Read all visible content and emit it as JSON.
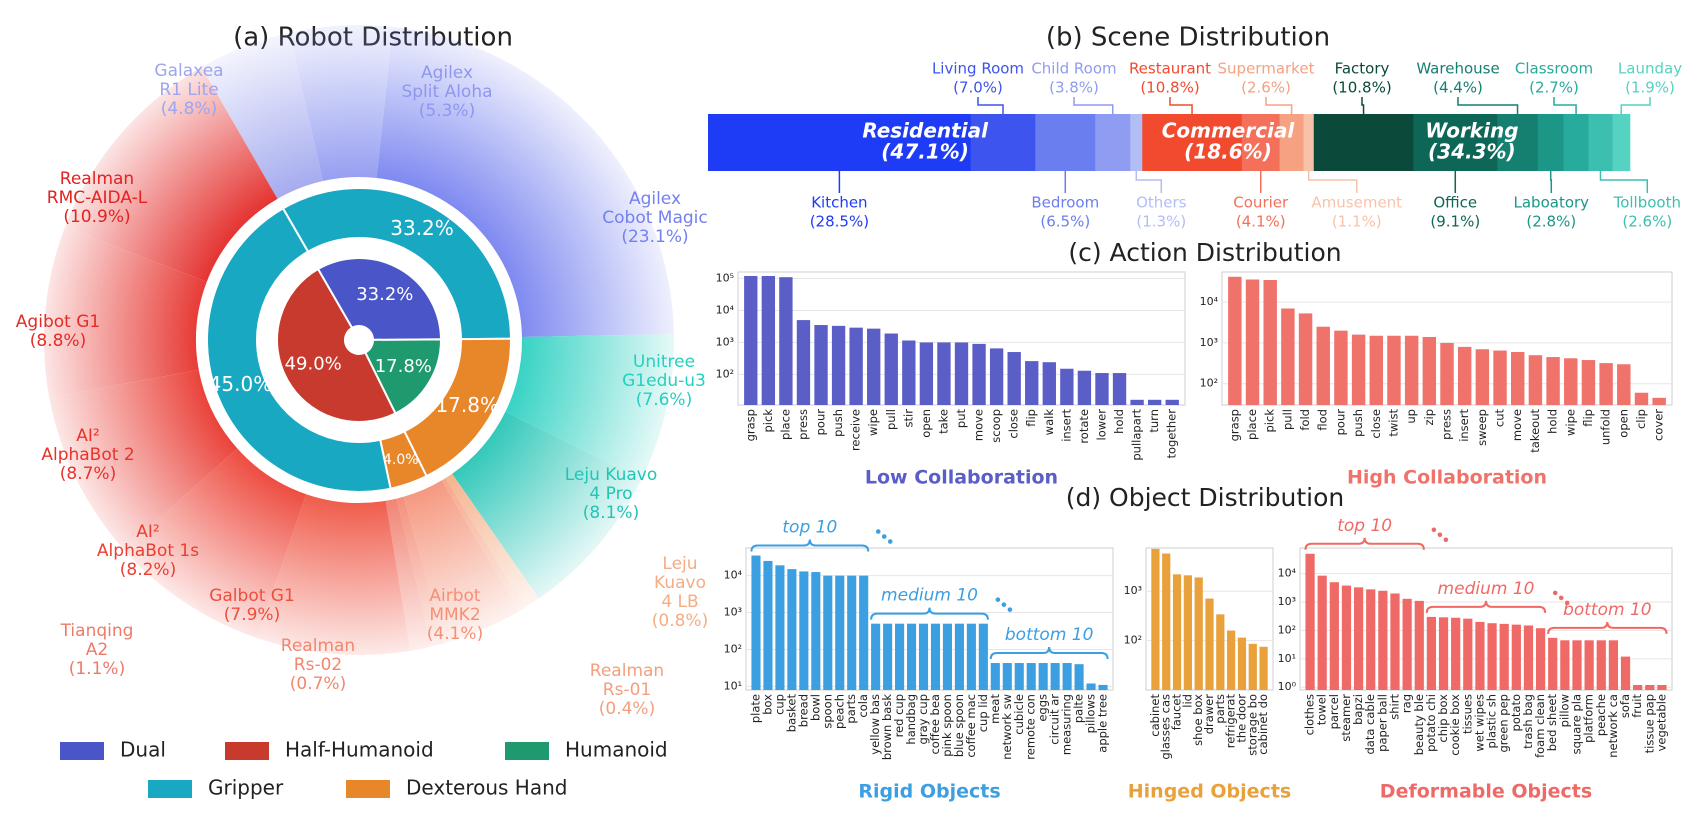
{
  "chart_data": [
    {
      "type": "donut",
      "title": "(a) Robot Distribution",
      "inner": {
        "categories": [
          "Dual",
          "Humanoid",
          "Half-Humanoid"
        ],
        "values": [
          33.2,
          17.8,
          49.0
        ],
        "value_labels": [
          "33.2%",
          "17.8%",
          "49.0%"
        ],
        "colors": [
          "#4a55c8",
          "#1f9a6e",
          "#c83a2e"
        ]
      },
      "middle": {
        "categories": [
          "Gripper",
          "Dexterous Hand",
          "Dexterous Hand",
          "Gripper"
        ],
        "values": [
          33.2,
          17.8,
          4.0,
          45.0
        ],
        "value_labels": [
          "33.2%",
          "17.8%",
          "4.0%",
          "45.0%"
        ],
        "colors": [
          "#18a8c2",
          "#e8862a",
          "#e8862a",
          "#18a8c2"
        ]
      },
      "outer": {
        "categories": [
          "Galaxea\nR1 Lite",
          "Agilex\nSplit Aloha",
          "Agilex\nCobot Magic",
          "Unitree\nG1edu-u3",
          "Leju Kuavo\n4 Pro",
          "Leju\nKuavo\n4 LB",
          "Realman\nRs-01",
          "Airbot\nMMK2",
          "Realman\nRs-02",
          "Tianqing\nA2",
          "Galbot G1",
          "AI²\nAlphaBot 1s",
          "AI²\nAlphaBot 2",
          "Agibot G1",
          "Realman\nRMC-AIDA-L"
        ],
        "values": [
          4.8,
          5.3,
          23.1,
          7.6,
          8.1,
          0.8,
          0.4,
          4.1,
          0.7,
          1.1,
          7.9,
          8.2,
          8.7,
          8.8,
          10.9
        ],
        "value_labels": [
          "(4.8%)",
          "(5.3%)",
          "(23.1%)",
          "(7.6%)",
          "(8.1%)",
          "(0.8%)",
          "(0.4%)",
          "(4.1%)",
          "(0.7%)",
          "(1.1%)",
          "(7.9%)",
          "(8.2%)",
          "(8.7%)",
          "(8.8%)",
          "(10.9%)"
        ],
        "colors": [
          "#9ea5ee",
          "#8e97f0",
          "#7480ef",
          "#27cfbf",
          "#22c4b4",
          "#f4ad84",
          "#f59e7e",
          "#f49076",
          "#f2866e",
          "#ef7a68",
          "#ee4f3d",
          "#ec3e31",
          "#e8332a",
          "#e52b25",
          "#e22320"
        ]
      }
    },
    {
      "type": "stacked_hbar",
      "title": "(b) Scene Distribution",
      "groups": [
        {
          "name": "Residential",
          "value": 47.1,
          "value_label": "(47.1%)",
          "categories": [
            "Kitchen",
            "Living Room",
            "Bedroom",
            "Child Room",
            "Others"
          ],
          "values": [
            28.5,
            7.0,
            6.5,
            3.8,
            1.3
          ],
          "value_labels": [
            "(28.5%)",
            "(7.0%)",
            "(6.5%)",
            "(3.8%)",
            "(1.3%)"
          ],
          "colors": [
            "#1e3cf5",
            "#3d54ee",
            "#6b7ef0",
            "#8e9cf2",
            "#b3bdf5"
          ]
        },
        {
          "name": "Commercial",
          "value": 18.6,
          "value_label": "(18.6%)",
          "categories": [
            "Restaurant",
            "Courier",
            "Supermarket",
            "Amusement"
          ],
          "values": [
            10.8,
            4.1,
            2.6,
            1.1
          ],
          "value_labels": [
            "(10.8%)",
            "(4.1%)",
            "(2.6%)",
            "(1.1%)"
          ],
          "colors": [
            "#f24a2e",
            "#f4705a",
            "#f6a182",
            "#f8c2aa"
          ]
        },
        {
          "name": "Working",
          "value": 34.3,
          "value_label": "(34.3%)",
          "categories": [
            "Factory",
            "Office",
            "Warehouse",
            "Laboatory",
            "Classroom",
            "Tollbooth",
            "Launday"
          ],
          "values": [
            10.8,
            9.1,
            4.4,
            2.8,
            2.7,
            2.6,
            1.9
          ],
          "value_labels": [
            "(10.8%)",
            "(9.1%)",
            "(4.4%)",
            "(2.8%)",
            "(2.7%)",
            "(2.6%)",
            "(1.9%)"
          ],
          "colors": [
            "#0b4a3b",
            "#0e6656",
            "#157f70",
            "#1c9687",
            "#27ab9c",
            "#3cbfae",
            "#55d2c1"
          ]
        }
      ]
    },
    {
      "type": "bar",
      "title": "(c) Action Distribution",
      "xlabel": "Low Collaboration",
      "color": "#5a5ec6",
      "log": true,
      "grid": true,
      "categories": [
        "grasp",
        "pick",
        "place",
        "press",
        "pour",
        "push",
        "receive",
        "wipe",
        "pull",
        "stir",
        "open",
        "take",
        "put",
        "move",
        "scoop",
        "close",
        "flip",
        "walk",
        "insert",
        "rotate",
        "lower",
        "hold",
        "pullapart",
        "turn",
        "together"
      ],
      "values": [
        120000,
        120000,
        110000,
        5000,
        3500,
        3300,
        2900,
        2700,
        1900,
        1150,
        1000,
        1000,
        1000,
        900,
        650,
        500,
        260,
        240,
        150,
        130,
        110,
        110,
        16,
        16,
        16
      ],
      "ylim": [
        11,
        160000
      ],
      "yticks": [
        {
          "value": 100,
          "label": "10²"
        },
        {
          "value": 1000,
          "label": "10³"
        },
        {
          "value": 10000,
          "label": "10⁴"
        },
        {
          "value": 100000,
          "label": "10⁵"
        }
      ]
    },
    {
      "type": "bar",
      "xlabel": "High Collaboration",
      "color": "#f0736b",
      "log": true,
      "grid": true,
      "categories": [
        "grasp",
        "place",
        "pick",
        "pull",
        "fold",
        "flod",
        "pour",
        "push",
        "close",
        "twist",
        "up",
        "zip",
        "press",
        "insert",
        "sweep",
        "cut",
        "move",
        "takeout",
        "hold",
        "wipe",
        "flip",
        "unfold",
        "open",
        "clip",
        "cover"
      ],
      "values": [
        42000,
        36000,
        35000,
        7000,
        5300,
        2500,
        2000,
        1600,
        1500,
        1500,
        1500,
        1400,
        1000,
        800,
        700,
        650,
        600,
        500,
        450,
        420,
        380,
        320,
        300,
        60,
        45
      ],
      "ylim": [
        30,
        55000
      ],
      "yticks": [
        {
          "value": 100,
          "label": "10²"
        },
        {
          "value": 1000,
          "label": "10³"
        },
        {
          "value": 10000,
          "label": "10⁴"
        }
      ]
    },
    {
      "type": "bar",
      "title": "(d) Object Distribution",
      "xlabel": "Rigid Objects",
      "color": "#3b9fe2",
      "log": true,
      "grid": true,
      "annotations": [
        "top 10",
        "medium 10",
        "bottom 10"
      ],
      "categories": [
        "plate",
        "box",
        "cup",
        "basket",
        "bread",
        "bowl",
        "spoon",
        "peach",
        "parts",
        "cola",
        "yellow bas",
        "brown bask",
        "red cup",
        "handbag",
        "gray cup",
        "coffee bea",
        "pink spoon",
        "blue spoon",
        "coffee mac",
        "cup lid",
        "meat",
        "network sw",
        "cubicle",
        "remote con",
        "eggs",
        "circuit ar",
        "measuring",
        "palte",
        "pillows",
        "apple tree"
      ],
      "values": [
        35000,
        25000,
        19000,
        15000,
        13000,
        12500,
        10000,
        10000,
        10000,
        10000,
        500,
        500,
        500,
        500,
        500,
        500,
        500,
        500,
        500,
        500,
        43,
        43,
        43,
        43,
        43,
        43,
        43,
        40,
        12,
        11
      ],
      "ylim": [
        8,
        56000
      ],
      "yticks": [
        {
          "value": 10,
          "label": "10¹"
        },
        {
          "value": 100,
          "label": "10²"
        },
        {
          "value": 1000,
          "label": "10³"
        },
        {
          "value": 10000,
          "label": "10⁴"
        }
      ]
    },
    {
      "type": "bar",
      "xlabel": "Hinged Objects",
      "color": "#e9a13b",
      "log": true,
      "grid": true,
      "categories": [
        "cabinet",
        "glasses cas",
        "faucet",
        "lid",
        "shoe box",
        "drawer",
        "parts",
        "refrigerat",
        "the door",
        "storage bo",
        "cabinet do"
      ],
      "values": [
        7200,
        5800,
        2200,
        2100,
        1900,
        710,
        340,
        160,
        115,
        86,
        75
      ],
      "ylim": [
        10,
        7500
      ],
      "yticks": [
        {
          "value": 100,
          "label": "10²"
        },
        {
          "value": 1000,
          "label": "10³"
        }
      ]
    },
    {
      "type": "bar",
      "xlabel": "Deformable Objects",
      "color": "#ef6a66",
      "log": true,
      "grid": true,
      "annotations": [
        "top 10",
        "medium 10",
        "bottom 10"
      ],
      "categories": [
        "clothes",
        "towel",
        "parcel",
        "steamer",
        "bapzi",
        "data cable",
        "paper ball",
        "shirt",
        "rag",
        "beauty ble",
        "potato chi",
        "chip box",
        "cookie box",
        "tissues",
        "wet wipes",
        "plastic sh",
        "green pep",
        "potato",
        "trash bag",
        "foam clean",
        "bed sheet",
        "pillow",
        "square pla",
        "platform",
        "peache",
        "network ca",
        "sofa",
        "fruit",
        "tissue pap",
        "vegetable"
      ],
      "values": [
        50000,
        8500,
        5000,
        3800,
        3300,
        2800,
        2500,
        2000,
        1300,
        1100,
        300,
        290,
        280,
        260,
        200,
        180,
        170,
        160,
        150,
        120,
        55,
        45,
        45,
        45,
        45,
        45,
        12,
        1.2,
        1.2,
        1.2
      ],
      "ylim": [
        0.8,
        80000
      ],
      "yticks": [
        {
          "value": 1,
          "label": "10⁰"
        },
        {
          "value": 10,
          "label": "10¹"
        },
        {
          "value": 100,
          "label": "10²"
        },
        {
          "value": 1000,
          "label": "10³"
        },
        {
          "value": 10000,
          "label": "10⁴"
        }
      ]
    }
  ]
}
